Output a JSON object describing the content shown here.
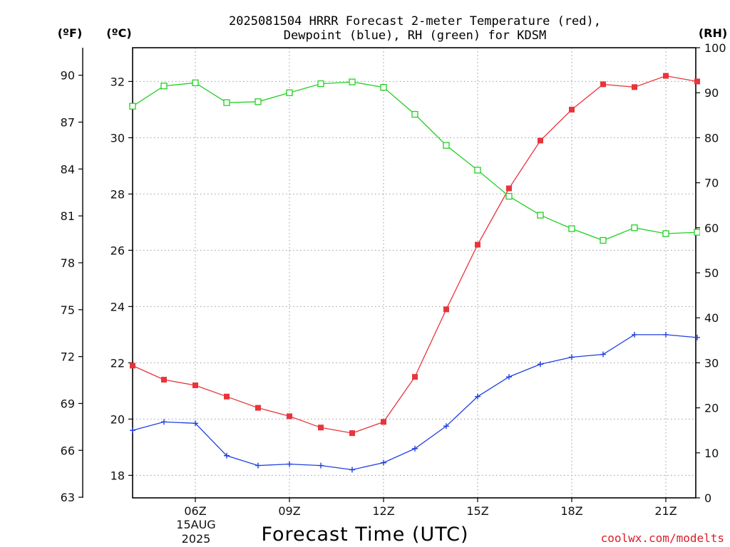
{
  "chart_data": {
    "type": "line",
    "title": "2025081504 HRRR Forecast 2-meter Temperature (red),",
    "subtitle": "Dewpoint (blue), RH (green) for KDSM",
    "xlabel": "Forecast Time (UTC)",
    "x_date_label": [
      "15AUG",
      "2025"
    ],
    "unit_labels": {
      "fahrenheit": "(ºF)",
      "celsius": "(ºC)",
      "rh": "(RH)"
    },
    "credit": "coolwx.com/modelts",
    "x": [
      "04Z",
      "05Z",
      "06Z",
      "07Z",
      "08Z",
      "09Z",
      "10Z",
      "11Z",
      "12Z",
      "13Z",
      "14Z",
      "15Z",
      "16Z",
      "17Z",
      "18Z",
      "19Z",
      "20Z",
      "21Z",
      "22Z"
    ],
    "x_ticks": [
      {
        "hour": "06Z",
        "label": "06Z"
      },
      {
        "hour": "09Z",
        "label": "09Z"
      },
      {
        "hour": "12Z",
        "label": "12Z"
      },
      {
        "hour": "15Z",
        "label": "15Z"
      },
      {
        "hour": "18Z",
        "label": "18Z"
      },
      {
        "hour": "21Z",
        "label": "21Z"
      }
    ],
    "celsius_ticks": [
      "18",
      "20",
      "22",
      "24",
      "26",
      "28",
      "30",
      "32"
    ],
    "fahrenheit_ticks": [
      "63",
      "66",
      "69",
      "72",
      "75",
      "78",
      "81",
      "84",
      "87",
      "90"
    ],
    "rh_ticks": [
      "0",
      "10",
      "20",
      "30",
      "40",
      "50",
      "60",
      "70",
      "80",
      "90",
      "100"
    ],
    "ylim_celsius": [
      17.2,
      33.2
    ],
    "ylim_rh": [
      0,
      100
    ],
    "grid": true,
    "series": [
      {
        "name": "Temperature",
        "axis": "celsius",
        "color": "#e8343b",
        "marker": "filled-square",
        "values": [
          21.9,
          21.4,
          21.2,
          20.8,
          20.4,
          20.1,
          19.7,
          19.5,
          19.9,
          21.5,
          23.9,
          26.2,
          28.2,
          29.9,
          31.0,
          31.9,
          31.8,
          32.2,
          32.0
        ]
      },
      {
        "name": "Dewpoint",
        "axis": "celsius",
        "color": "#2040e0",
        "marker": "plus",
        "values": [
          19.6,
          19.9,
          19.85,
          18.7,
          18.35,
          18.4,
          18.35,
          18.2,
          18.45,
          18.95,
          19.75,
          20.8,
          21.5,
          21.95,
          22.2,
          22.3,
          23.0,
          23.0,
          22.9
        ]
      },
      {
        "name": "RH",
        "axis": "rh",
        "color": "#22d022",
        "marker": "open-square",
        "values": [
          87.0,
          91.5,
          92.2,
          87.8,
          88.0,
          90.0,
          92.0,
          92.4,
          91.2,
          85.2,
          78.3,
          72.8,
          67.0,
          62.8,
          59.8,
          57.2,
          60.0,
          58.7,
          59.0
        ]
      }
    ]
  }
}
